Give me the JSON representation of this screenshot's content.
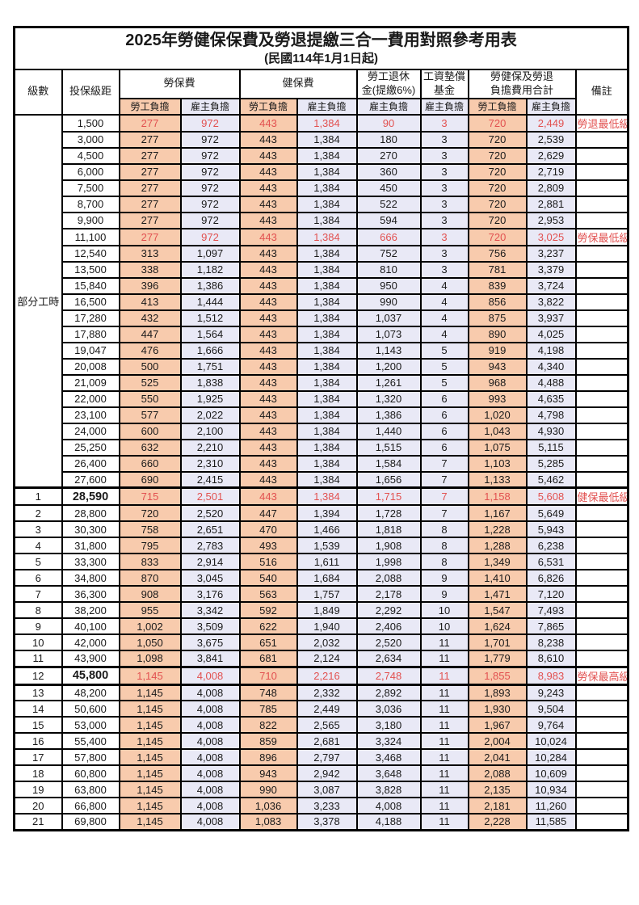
{
  "title": "2025年勞健保保費及勞退提繳三合一費用對照參考用表",
  "subtitle": "(民國114年1月1日起)",
  "colors": {
    "employee_bg": "#F8CBAD",
    "employer_bg": "#E9E9F6",
    "highlight_red": "#E25150",
    "border": "#000000"
  },
  "header": {
    "level": "級數",
    "bracket": "投保級距",
    "labor_ins": "勞保費",
    "health_ins": "健保費",
    "pension_line1": "勞工退休",
    "pension_line2": "金(提繳6%)",
    "wage_fund_line1": "工資墊償",
    "wage_fund_line2": "基金",
    "total_line1": "勞健保及勞退",
    "total_line2": "負擔費用合計",
    "remark": "備註",
    "employee": "勞工負擔",
    "employer": "雇主負擔"
  },
  "part_time_label": "部分工時",
  "part_time_rowspan": 23,
  "rows": [
    {
      "level": "",
      "bracket": "1,500",
      "v": [
        "277",
        "972",
        "443",
        "1,384",
        "90",
        "3",
        "720",
        "2,449"
      ],
      "remark": "勞退最低級距",
      "red": true
    },
    {
      "level": "",
      "bracket": "3,000",
      "v": [
        "277",
        "972",
        "443",
        "1,384",
        "180",
        "3",
        "720",
        "2,539"
      ],
      "remark": ""
    },
    {
      "level": "",
      "bracket": "4,500",
      "v": [
        "277",
        "972",
        "443",
        "1,384",
        "270",
        "3",
        "720",
        "2,629"
      ],
      "remark": ""
    },
    {
      "level": "",
      "bracket": "6,000",
      "v": [
        "277",
        "972",
        "443",
        "1,384",
        "360",
        "3",
        "720",
        "2,719"
      ],
      "remark": ""
    },
    {
      "level": "",
      "bracket": "7,500",
      "v": [
        "277",
        "972",
        "443",
        "1,384",
        "450",
        "3",
        "720",
        "2,809"
      ],
      "remark": ""
    },
    {
      "level": "",
      "bracket": "8,700",
      "v": [
        "277",
        "972",
        "443",
        "1,384",
        "522",
        "3",
        "720",
        "2,881"
      ],
      "remark": ""
    },
    {
      "level": "",
      "bracket": "9,900",
      "v": [
        "277",
        "972",
        "443",
        "1,384",
        "594",
        "3",
        "720",
        "2,953"
      ],
      "remark": ""
    },
    {
      "level": "",
      "bracket": "11,100",
      "v": [
        "277",
        "972",
        "443",
        "1,384",
        "666",
        "3",
        "720",
        "3,025"
      ],
      "remark": "勞保最低級距",
      "red": true
    },
    {
      "level": "",
      "bracket": "12,540",
      "v": [
        "313",
        "1,097",
        "443",
        "1,384",
        "752",
        "3",
        "756",
        "3,237"
      ],
      "remark": ""
    },
    {
      "level": "",
      "bracket": "13,500",
      "v": [
        "338",
        "1,182",
        "443",
        "1,384",
        "810",
        "3",
        "781",
        "3,379"
      ],
      "remark": ""
    },
    {
      "level": "",
      "bracket": "15,840",
      "v": [
        "396",
        "1,386",
        "443",
        "1,384",
        "950",
        "4",
        "839",
        "3,724"
      ],
      "remark": ""
    },
    {
      "level": "",
      "bracket": "16,500",
      "v": [
        "413",
        "1,444",
        "443",
        "1,384",
        "990",
        "4",
        "856",
        "3,822"
      ],
      "remark": ""
    },
    {
      "level": "",
      "bracket": "17,280",
      "v": [
        "432",
        "1,512",
        "443",
        "1,384",
        "1,037",
        "4",
        "875",
        "3,937"
      ],
      "remark": ""
    },
    {
      "level": "",
      "bracket": "17,880",
      "v": [
        "447",
        "1,564",
        "443",
        "1,384",
        "1,073",
        "4",
        "890",
        "4,025"
      ],
      "remark": ""
    },
    {
      "level": "",
      "bracket": "19,047",
      "v": [
        "476",
        "1,666",
        "443",
        "1,384",
        "1,143",
        "5",
        "919",
        "4,198"
      ],
      "remark": ""
    },
    {
      "level": "",
      "bracket": "20,008",
      "v": [
        "500",
        "1,751",
        "443",
        "1,384",
        "1,200",
        "5",
        "943",
        "4,340"
      ],
      "remark": ""
    },
    {
      "level": "",
      "bracket": "21,009",
      "v": [
        "525",
        "1,838",
        "443",
        "1,384",
        "1,261",
        "5",
        "968",
        "4,488"
      ],
      "remark": ""
    },
    {
      "level": "",
      "bracket": "22,000",
      "v": [
        "550",
        "1,925",
        "443",
        "1,384",
        "1,320",
        "6",
        "993",
        "4,635"
      ],
      "remark": ""
    },
    {
      "level": "",
      "bracket": "23,100",
      "v": [
        "577",
        "2,022",
        "443",
        "1,384",
        "1,386",
        "6",
        "1,020",
        "4,798"
      ],
      "remark": ""
    },
    {
      "level": "",
      "bracket": "24,000",
      "v": [
        "600",
        "2,100",
        "443",
        "1,384",
        "1,440",
        "6",
        "1,043",
        "4,930"
      ],
      "remark": ""
    },
    {
      "level": "",
      "bracket": "25,250",
      "v": [
        "632",
        "2,210",
        "443",
        "1,384",
        "1,515",
        "6",
        "1,075",
        "5,115"
      ],
      "remark": ""
    },
    {
      "level": "",
      "bracket": "26,400",
      "v": [
        "660",
        "2,310",
        "443",
        "1,384",
        "1,584",
        "7",
        "1,103",
        "5,285"
      ],
      "remark": ""
    },
    {
      "level": "",
      "bracket": "27,600",
      "v": [
        "690",
        "2,415",
        "443",
        "1,384",
        "1,656",
        "7",
        "1,133",
        "5,462"
      ],
      "remark": ""
    },
    {
      "level": "1",
      "bracket": "28,590",
      "v": [
        "715",
        "2,501",
        "443",
        "1,384",
        "1,715",
        "7",
        "1,158",
        "5,608"
      ],
      "remark": "健保最低級距",
      "red": true,
      "bold": true,
      "thick_top": true
    },
    {
      "level": "2",
      "bracket": "28,800",
      "v": [
        "720",
        "2,520",
        "447",
        "1,394",
        "1,728",
        "7",
        "1,167",
        "5,649"
      ],
      "remark": ""
    },
    {
      "level": "3",
      "bracket": "30,300",
      "v": [
        "758",
        "2,651",
        "470",
        "1,466",
        "1,818",
        "8",
        "1,228",
        "5,943"
      ],
      "remark": ""
    },
    {
      "level": "4",
      "bracket": "31,800",
      "v": [
        "795",
        "2,783",
        "493",
        "1,539",
        "1,908",
        "8",
        "1,288",
        "6,238"
      ],
      "remark": ""
    },
    {
      "level": "5",
      "bracket": "33,300",
      "v": [
        "833",
        "2,914",
        "516",
        "1,611",
        "1,998",
        "8",
        "1,349",
        "6,531"
      ],
      "remark": ""
    },
    {
      "level": "6",
      "bracket": "34,800",
      "v": [
        "870",
        "3,045",
        "540",
        "1,684",
        "2,088",
        "9",
        "1,410",
        "6,826"
      ],
      "remark": ""
    },
    {
      "level": "7",
      "bracket": "36,300",
      "v": [
        "908",
        "3,176",
        "563",
        "1,757",
        "2,178",
        "9",
        "1,471",
        "7,120"
      ],
      "remark": ""
    },
    {
      "level": "8",
      "bracket": "38,200",
      "v": [
        "955",
        "3,342",
        "592",
        "1,849",
        "2,292",
        "10",
        "1,547",
        "7,493"
      ],
      "remark": ""
    },
    {
      "level": "9",
      "bracket": "40,100",
      "v": [
        "1,002",
        "3,509",
        "622",
        "1,940",
        "2,406",
        "10",
        "1,624",
        "7,865"
      ],
      "remark": ""
    },
    {
      "level": "10",
      "bracket": "42,000",
      "v": [
        "1,050",
        "3,675",
        "651",
        "2,032",
        "2,520",
        "11",
        "1,701",
        "8,238"
      ],
      "remark": ""
    },
    {
      "level": "11",
      "bracket": "43,900",
      "v": [
        "1,098",
        "3,841",
        "681",
        "2,124",
        "2,634",
        "11",
        "1,779",
        "8,610"
      ],
      "remark": ""
    },
    {
      "level": "12",
      "bracket": "45,800",
      "v": [
        "1,145",
        "4,008",
        "710",
        "2,216",
        "2,748",
        "11",
        "1,855",
        "8,983"
      ],
      "remark": "勞保最高級距",
      "red": true,
      "bold": true,
      "thick_top": true,
      "thick_bottom": true
    },
    {
      "level": "13",
      "bracket": "48,200",
      "v": [
        "1,145",
        "4,008",
        "748",
        "2,332",
        "2,892",
        "11",
        "1,893",
        "9,243"
      ],
      "remark": ""
    },
    {
      "level": "14",
      "bracket": "50,600",
      "v": [
        "1,145",
        "4,008",
        "785",
        "2,449",
        "3,036",
        "11",
        "1,930",
        "9,504"
      ],
      "remark": ""
    },
    {
      "level": "15",
      "bracket": "53,000",
      "v": [
        "1,145",
        "4,008",
        "822",
        "2,565",
        "3,180",
        "11",
        "1,967",
        "9,764"
      ],
      "remark": ""
    },
    {
      "level": "16",
      "bracket": "55,400",
      "v": [
        "1,145",
        "4,008",
        "859",
        "2,681",
        "3,324",
        "11",
        "2,004",
        "10,024"
      ],
      "remark": ""
    },
    {
      "level": "17",
      "bracket": "57,800",
      "v": [
        "1,145",
        "4,008",
        "896",
        "2,797",
        "3,468",
        "11",
        "2,041",
        "10,284"
      ],
      "remark": ""
    },
    {
      "level": "18",
      "bracket": "60,800",
      "v": [
        "1,145",
        "4,008",
        "943",
        "2,942",
        "3,648",
        "11",
        "2,088",
        "10,609"
      ],
      "remark": ""
    },
    {
      "level": "19",
      "bracket": "63,800",
      "v": [
        "1,145",
        "4,008",
        "990",
        "3,087",
        "3,828",
        "11",
        "2,135",
        "10,934"
      ],
      "remark": ""
    },
    {
      "level": "20",
      "bracket": "66,800",
      "v": [
        "1,145",
        "4,008",
        "1,036",
        "3,233",
        "4,008",
        "11",
        "2,181",
        "11,260"
      ],
      "remark": ""
    },
    {
      "level": "21",
      "bracket": "69,800",
      "v": [
        "1,145",
        "4,008",
        "1,083",
        "3,378",
        "4,188",
        "11",
        "2,228",
        "11,585"
      ],
      "remark": ""
    }
  ]
}
